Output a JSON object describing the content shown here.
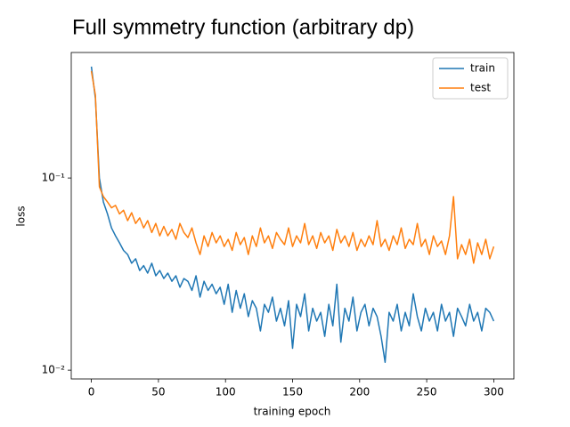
{
  "chart_data": {
    "type": "line",
    "title": "Full symmetry function (arbitrary dp)",
    "x_label": "training epoch",
    "y_label": "loss",
    "y_scale": "log",
    "legend": "upper right",
    "xlim": [
      -15,
      315
    ],
    "ylim": [
      0.009,
      0.45
    ],
    "xticks": [
      0,
      50,
      100,
      150,
      200,
      250,
      300
    ],
    "yticks": [
      {
        "value": 0.01,
        "label": "10⁻²"
      },
      {
        "value": 0.1,
        "label": "10⁻¹"
      }
    ],
    "x": [
      0,
      3,
      6,
      9,
      12,
      15,
      18,
      21,
      24,
      27,
      30,
      33,
      36,
      39,
      42,
      45,
      48,
      51,
      54,
      57,
      60,
      63,
      66,
      69,
      72,
      75,
      78,
      81,
      84,
      87,
      90,
      93,
      96,
      99,
      102,
      105,
      108,
      111,
      114,
      117,
      120,
      123,
      126,
      129,
      132,
      135,
      138,
      141,
      144,
      147,
      150,
      153,
      156,
      159,
      162,
      165,
      168,
      171,
      174,
      177,
      180,
      183,
      186,
      189,
      192,
      195,
      198,
      201,
      204,
      207,
      210,
      213,
      216,
      219,
      222,
      225,
      228,
      231,
      234,
      237,
      240,
      243,
      246,
      249,
      252,
      255,
      258,
      261,
      264,
      267,
      270,
      273,
      276,
      279,
      282,
      285,
      288,
      291,
      294,
      297,
      300
    ],
    "series": [
      {
        "name": "train",
        "color": "#1f77b4",
        "values": [
          0.38,
          0.26,
          0.1,
          0.075,
          0.065,
          0.055,
          0.05,
          0.046,
          0.042,
          0.04,
          0.036,
          0.038,
          0.033,
          0.035,
          0.032,
          0.036,
          0.031,
          0.033,
          0.03,
          0.032,
          0.029,
          0.031,
          0.027,
          0.03,
          0.029,
          0.026,
          0.031,
          0.024,
          0.029,
          0.026,
          0.028,
          0.025,
          0.027,
          0.022,
          0.028,
          0.02,
          0.026,
          0.021,
          0.025,
          0.019,
          0.023,
          0.021,
          0.016,
          0.022,
          0.02,
          0.024,
          0.018,
          0.021,
          0.017,
          0.023,
          0.013,
          0.022,
          0.019,
          0.025,
          0.016,
          0.021,
          0.018,
          0.02,
          0.015,
          0.022,
          0.017,
          0.028,
          0.014,
          0.021,
          0.018,
          0.024,
          0.016,
          0.02,
          0.022,
          0.017,
          0.021,
          0.019,
          0.015,
          0.011,
          0.02,
          0.018,
          0.022,
          0.016,
          0.02,
          0.017,
          0.025,
          0.019,
          0.016,
          0.021,
          0.018,
          0.02,
          0.016,
          0.022,
          0.018,
          0.02,
          0.015,
          0.021,
          0.019,
          0.017,
          0.022,
          0.018,
          0.02,
          0.016,
          0.021,
          0.02,
          0.018
        ]
      },
      {
        "name": "test",
        "color": "#ff7f0e",
        "values": [
          0.36,
          0.27,
          0.09,
          0.08,
          0.075,
          0.07,
          0.072,
          0.065,
          0.068,
          0.06,
          0.066,
          0.058,
          0.062,
          0.055,
          0.06,
          0.052,
          0.058,
          0.05,
          0.056,
          0.05,
          0.054,
          0.048,
          0.058,
          0.052,
          0.049,
          0.055,
          0.046,
          0.04,
          0.05,
          0.044,
          0.052,
          0.046,
          0.05,
          0.044,
          0.048,
          0.042,
          0.052,
          0.045,
          0.049,
          0.04,
          0.05,
          0.044,
          0.055,
          0.046,
          0.05,
          0.043,
          0.052,
          0.048,
          0.045,
          0.055,
          0.044,
          0.05,
          0.046,
          0.058,
          0.045,
          0.05,
          0.043,
          0.052,
          0.046,
          0.05,
          0.042,
          0.054,
          0.046,
          0.05,
          0.044,
          0.052,
          0.042,
          0.048,
          0.044,
          0.05,
          0.045,
          0.06,
          0.044,
          0.048,
          0.042,
          0.05,
          0.045,
          0.055,
          0.043,
          0.048,
          0.045,
          0.058,
          0.044,
          0.048,
          0.04,
          0.05,
          0.044,
          0.047,
          0.04,
          0.05,
          0.08,
          0.038,
          0.045,
          0.04,
          0.048,
          0.036,
          0.046,
          0.04,
          0.048,
          0.038,
          0.044
        ]
      }
    ]
  }
}
